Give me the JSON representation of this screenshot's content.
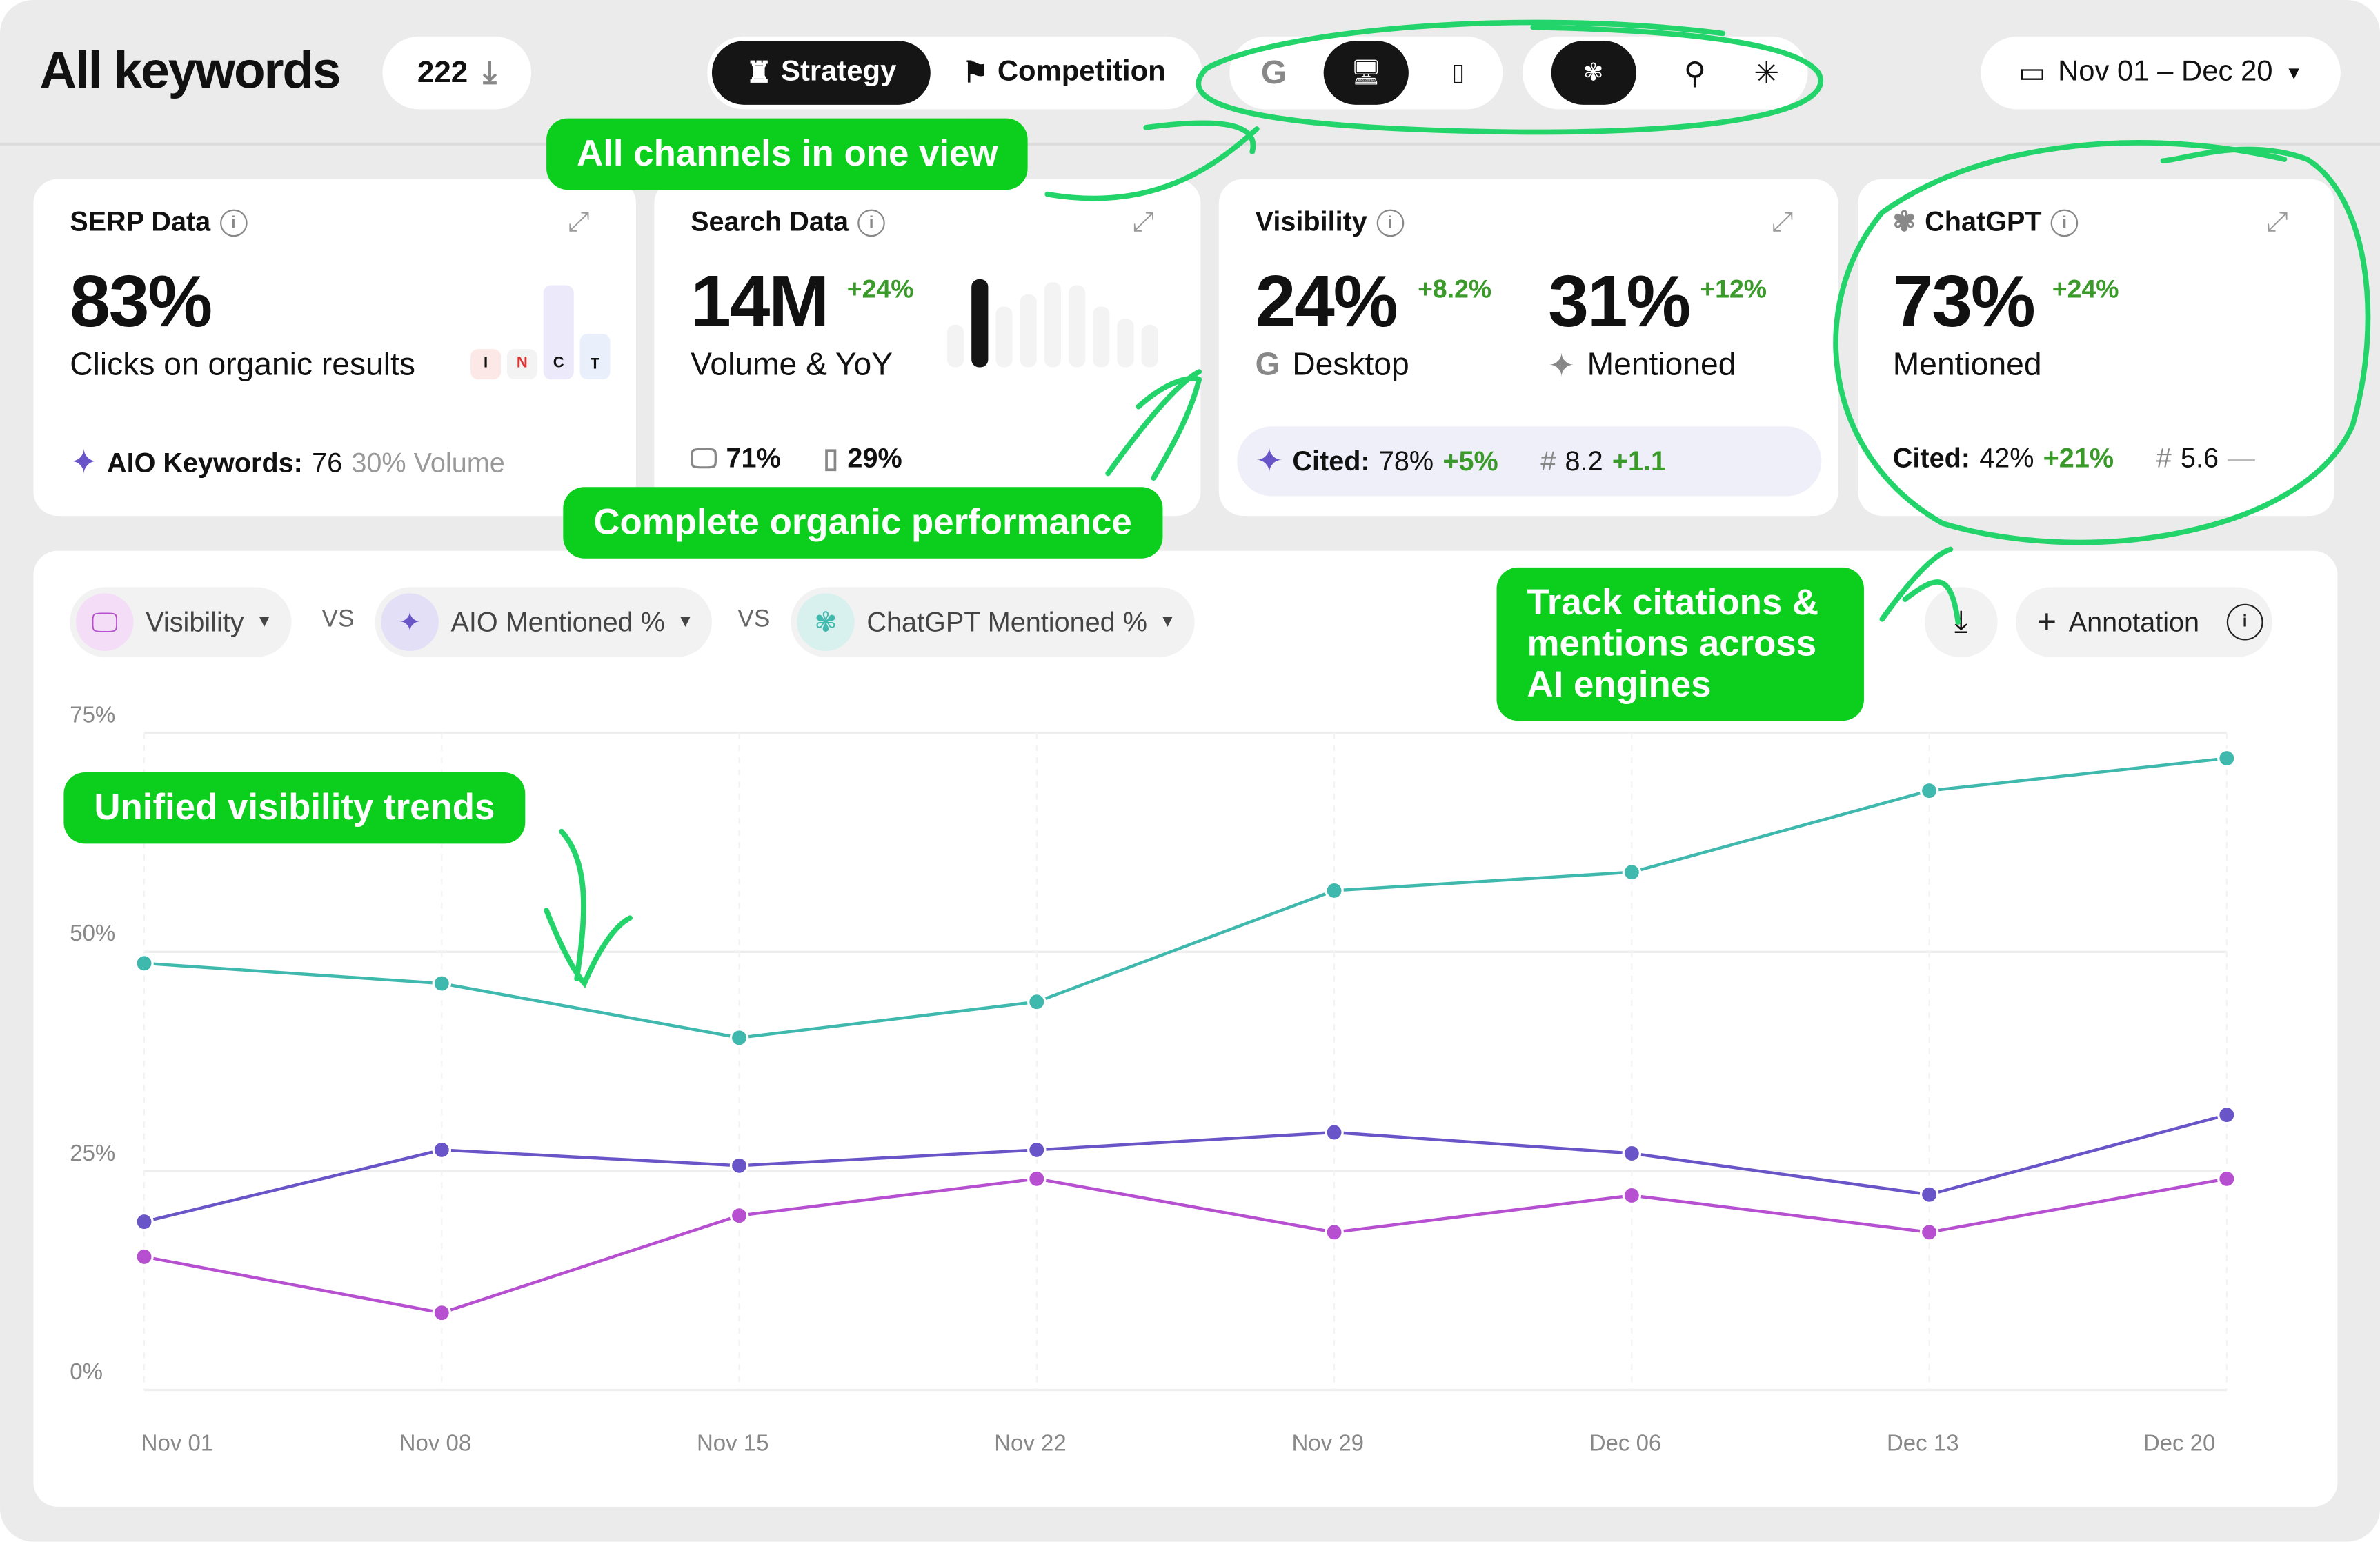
{
  "header": {
    "title": "All keywords",
    "count": "222",
    "tabs": [
      {
        "label": "Strategy",
        "active": true
      },
      {
        "label": "Competition",
        "active": false
      }
    ],
    "channels": [
      {
        "icon": "google-icon",
        "active": false
      },
      {
        "icon": "desktop-icon",
        "active": true
      },
      {
        "icon": "mobile-icon",
        "active": false
      },
      {
        "icon": "chatgpt-icon",
        "active": true
      },
      {
        "icon": "ai-search-icon",
        "active": false
      },
      {
        "icon": "perplexity-icon",
        "active": false
      }
    ],
    "date_range": "Nov 01 – Dec 20"
  },
  "cards": {
    "serp": {
      "title": "SERP Data",
      "value": "83%",
      "label": "Clicks on organic results",
      "intents": [
        "I",
        "N",
        "C",
        "T"
      ],
      "aio_label": "AIO Keywords:",
      "aio_value": "76",
      "aio_volume": "30% Volume"
    },
    "search": {
      "title": "Search Data",
      "value": "14M",
      "delta": "+24%",
      "label": "Volume & YoY",
      "desktop": "71%",
      "mobile": "29%"
    },
    "visibility": {
      "title": "Visibility",
      "value1": "24%",
      "delta1": "+8.2%",
      "label1": "Desktop",
      "value2": "31%",
      "delta2": "+12%",
      "label2": "Mentioned",
      "cited_label": "Cited:",
      "cited": "78%",
      "cited_delta": "+5%",
      "rank_symbol": "#",
      "rank": "8.2",
      "rank_delta": "+1.1"
    },
    "chatgpt": {
      "title": "ChatGPT",
      "value": "73%",
      "delta": "+24%",
      "label": "Mentioned",
      "cited_label": "Cited:",
      "cited": "42%",
      "cited_delta": "+21%",
      "rank_symbol": "#",
      "rank": "5.6",
      "rank_delta": "—"
    }
  },
  "chart_controls": {
    "metric1": "Visibility",
    "vs": "VS",
    "metric2": "AIO Mentioned %",
    "metric3": "ChatGPT Mentioned %",
    "annotation": "Annotation"
  },
  "callouts": {
    "channels": "All channels in one view",
    "organic": "Complete organic performance",
    "citations": "Track citations & mentions across AI engines",
    "trends": "Unified visibility trends"
  },
  "colors": {
    "accent_green": "#0bcf1c",
    "teal": "#3fb8ae",
    "purple": "#6a55c8",
    "magenta": "#b64fd0",
    "positive": "#3a9a2a"
  },
  "chart_data": {
    "type": "line",
    "categories": [
      "Nov 01",
      "Nov 08",
      "Nov 15",
      "Nov 22",
      "Nov 29",
      "Dec 06",
      "Dec 13",
      "Dec 20"
    ],
    "y_ticks": [
      "0%",
      "25%",
      "50%",
      "75%"
    ],
    "ylim": [
      0,
      75
    ],
    "grid": true,
    "series": [
      {
        "name": "ChatGPT Mentioned %",
        "color": "#3fb8ae",
        "values": [
          48.7,
          46.4,
          40.2,
          44.3,
          57.0,
          59.1,
          68.4,
          72.1
        ]
      },
      {
        "name": "AIO Mentioned %",
        "color": "#6a55c8",
        "values": [
          19.2,
          27.4,
          25.6,
          27.4,
          29.4,
          27.0,
          22.3,
          31.4
        ]
      },
      {
        "name": "Visibility",
        "color": "#b64fd0",
        "values": [
          15.2,
          8.8,
          19.9,
          24.1,
          18.0,
          22.2,
          18.0,
          24.1
        ]
      }
    ]
  }
}
